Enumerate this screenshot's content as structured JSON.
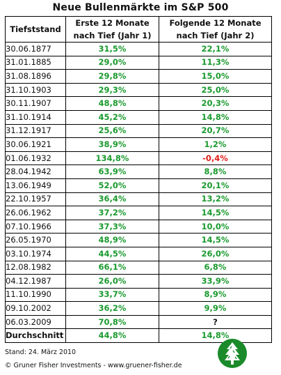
{
  "title": "Neue Bullenmärkte im S&P 500",
  "table": {
    "headers": {
      "date": "Tiefststand",
      "year1_line1": "Erste 12 Monate",
      "year1_line2": "nach Tief (Jahr 1)",
      "year2_line1": "Folgende 12 Monate",
      "year2_line2": "nach Tief (Jahr 2)"
    },
    "rows": [
      {
        "date": "30.06.1877",
        "year1": "31,5%",
        "year2": "22,1%"
      },
      {
        "date": "31.01.1885",
        "year1": "29,0%",
        "year2": "11,3%"
      },
      {
        "date": "31.08.1896",
        "year1": "29,8%",
        "year2": "15,0%"
      },
      {
        "date": "31.10.1903",
        "year1": "29,3%",
        "year2": "25,0%"
      },
      {
        "date": "30.11.1907",
        "year1": "48,8%",
        "year2": "20,3%"
      },
      {
        "date": "31.10.1914",
        "year1": "45,2%",
        "year2": "14,8%"
      },
      {
        "date": "31.12.1917",
        "year1": "25,6%",
        "year2": "20,7%"
      },
      {
        "date": "30.06.1921",
        "year1": "38,9%",
        "year2": "1,2%"
      },
      {
        "date": "01.06.1932",
        "year1": "134,8%",
        "year2": "-0,4%",
        "year2_negative": true
      },
      {
        "date": "28.04.1942",
        "year1": "63,9%",
        "year2": "8,8%"
      },
      {
        "date": "13.06.1949",
        "year1": "52,0%",
        "year2": "20,1%"
      },
      {
        "date": "22.10.1957",
        "year1": "36,4%",
        "year2": "13,2%"
      },
      {
        "date": "26.06.1962",
        "year1": "37,2%",
        "year2": "14,5%"
      },
      {
        "date": "07.10.1966",
        "year1": "37,3%",
        "year2": "10,0%"
      },
      {
        "date": "26.05.1970",
        "year1": "48,9%",
        "year2": "14,5%"
      },
      {
        "date": "03.10.1974",
        "year1": "44,5%",
        "year2": "26,0%"
      },
      {
        "date": "12.08.1982",
        "year1": "66,1%",
        "year2": "6,8%"
      },
      {
        "date": "04.12.1987",
        "year1": "26,0%",
        "year2": "33,9%"
      },
      {
        "date": "11.10.1990",
        "year1": "33,7%",
        "year2": "8,9%"
      },
      {
        "date": "09.10.2002",
        "year1": "36,2%",
        "year2": "9,9%"
      },
      {
        "date": "06.03.2009",
        "year1": "70,8%",
        "year2": "?",
        "year2_unknown": true
      }
    ],
    "average": {
      "label": "Durchschnitt",
      "year1": "44,8%",
      "year2": "14,8%"
    }
  },
  "footer": {
    "stand": "Stand: 24. März 2010",
    "copyright": "© Gruner Fisher Investments - www.gruener-fisher.de"
  },
  "logo": {
    "icon": "tree-logo-icon",
    "color": "#1a8a2a"
  },
  "colors": {
    "positive": "#1a9a2e",
    "negative": "#e0201b"
  }
}
